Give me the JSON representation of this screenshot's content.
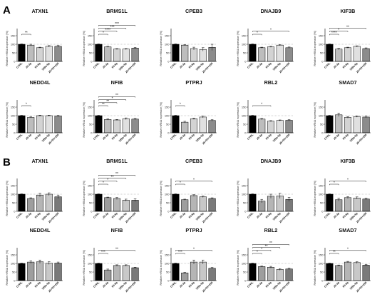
{
  "panels": [
    {
      "letter": "A"
    },
    {
      "letter": "B"
    }
  ],
  "chart_data": [
    {
      "panel": "A",
      "type": "bar",
      "title": "ATXN1",
      "ylabel": "Relative mRNA expression [%]",
      "ylim": [
        0,
        150
      ],
      "yticks": [
        0,
        50,
        100,
        150
      ],
      "categories": [
        "CTRL",
        "25-3p",
        "93-5p",
        "199a-5p",
        "25+93+199"
      ],
      "values": [
        100,
        95,
        80,
        88,
        88
      ],
      "errors": [
        2,
        5,
        3,
        4,
        5
      ],
      "significance": [
        {
          "to": 1,
          "label": "**"
        }
      ]
    },
    {
      "panel": "A",
      "type": "bar",
      "title": "BRMS1L",
      "ylabel": "Relative mRNA expression [%]",
      "ylim": [
        0,
        150
      ],
      "yticks": [
        0,
        50,
        100,
        150
      ],
      "categories": [
        "CTRL",
        "25-3p",
        "93-5p",
        "199a-5p",
        "25+93+199"
      ],
      "values": [
        100,
        85,
        72,
        72,
        78
      ],
      "errors": [
        2,
        3,
        3,
        3,
        4
      ],
      "significance": [
        {
          "to": 1,
          "label": "*"
        },
        {
          "to": 2,
          "label": "****"
        },
        {
          "to": 3,
          "label": "***"
        },
        {
          "to": 4,
          "label": "***"
        }
      ]
    },
    {
      "panel": "A",
      "type": "bar",
      "title": "CPEB3",
      "ylabel": "Relative mRNA expression [%]",
      "ylim": [
        0,
        150
      ],
      "yticks": [
        0,
        50,
        100,
        150
      ],
      "categories": [
        "CTRL",
        "25-3p",
        "93-5p",
        "199a-5p",
        "25+93+199"
      ],
      "values": [
        100,
        95,
        75,
        70,
        82
      ],
      "errors": [
        2,
        3,
        8,
        10,
        18
      ],
      "significance": []
    },
    {
      "panel": "A",
      "type": "bar",
      "title": "DNAJB9",
      "ylabel": "Relative mRNA expression [%]",
      "ylim": [
        0,
        150
      ],
      "yticks": [
        0,
        50,
        100,
        150
      ],
      "categories": [
        "CTRL",
        "25-3p",
        "93-5p",
        "199a-5p",
        "25+93+199"
      ],
      "values": [
        100,
        80,
        85,
        95,
        80
      ],
      "errors": [
        2,
        3,
        3,
        3,
        4
      ],
      "significance": [
        {
          "to": 1,
          "label": "*"
        },
        {
          "to": 4,
          "label": "*"
        }
      ]
    },
    {
      "panel": "A",
      "type": "bar",
      "title": "KIF3B",
      "ylabel": "Relative mRNA expression [%]",
      "ylim": [
        0,
        150
      ],
      "yticks": [
        0,
        50,
        100,
        150
      ],
      "categories": [
        "CTRL",
        "25-3p",
        "93-5p",
        "199a-5p",
        "25+93+199"
      ],
      "values": [
        100,
        72,
        80,
        88,
        75
      ],
      "errors": [
        2,
        4,
        3,
        3,
        4
      ],
      "significance": [
        {
          "to": 1,
          "label": "****"
        },
        {
          "to": 2,
          "label": "*"
        },
        {
          "to": 4,
          "label": "**"
        }
      ]
    },
    {
      "panel": "A",
      "type": "bar",
      "title": "NEDD4L",
      "ylabel": "Relative mRNA expression [%]",
      "ylim": [
        0,
        150
      ],
      "yticks": [
        0,
        50,
        100,
        150
      ],
      "categories": [
        "CTRL",
        "25-3p",
        "93-5p",
        "199a-5p",
        "25+93+199"
      ],
      "values": [
        100,
        90,
        100,
        100,
        98
      ],
      "errors": [
        2,
        3,
        3,
        3,
        3
      ],
      "significance": [
        {
          "to": 1,
          "label": "*"
        }
      ]
    },
    {
      "panel": "A",
      "type": "bar",
      "title": "NFIB",
      "ylabel": "Relative mRNA expression [%]",
      "ylim": [
        0,
        150
      ],
      "yticks": [
        0,
        50,
        100,
        150
      ],
      "categories": [
        "CTRL",
        "25-3p",
        "93-5p",
        "199a-5p",
        "25+93+199"
      ],
      "values": [
        100,
        78,
        75,
        82,
        80
      ],
      "errors": [
        2,
        4,
        3,
        5,
        4
      ],
      "significance": [
        {
          "to": 1,
          "label": "**"
        },
        {
          "to": 2,
          "label": "**"
        },
        {
          "to": 3,
          "label": "*"
        },
        {
          "to": 4,
          "label": "**"
        }
      ]
    },
    {
      "panel": "A",
      "type": "bar",
      "title": "PTPRJ",
      "ylabel": "Relative mRNA expression [%]",
      "ylim": [
        0,
        150
      ],
      "yticks": [
        0,
        50,
        100,
        150
      ],
      "categories": [
        "CTRL",
        "25-3p",
        "93-5p",
        "199a-5p",
        "25+93+199"
      ],
      "values": [
        100,
        62,
        82,
        92,
        72
      ],
      "errors": [
        2,
        5,
        4,
        5,
        5
      ],
      "significance": [
        {
          "to": 1,
          "label": "*"
        }
      ]
    },
    {
      "panel": "A",
      "type": "bar",
      "title": "RBL2",
      "ylabel": "Relative mRNA expression [%]",
      "ylim": [
        0,
        150
      ],
      "yticks": [
        0,
        50,
        100,
        150
      ],
      "categories": [
        "CTRL",
        "25-3p",
        "93-5p",
        "199a-5p",
        "25+93+199"
      ],
      "values": [
        100,
        80,
        68,
        72,
        73
      ],
      "errors": [
        2,
        4,
        3,
        3,
        4
      ],
      "significance": [
        {
          "to": 2,
          "label": "*"
        }
      ]
    },
    {
      "panel": "A",
      "type": "bar",
      "title": "SMAD7",
      "ylabel": "Relative mRNA expression [%]",
      "ylim": [
        0,
        150
      ],
      "yticks": [
        0,
        50,
        100,
        150
      ],
      "categories": [
        "CTRL",
        "25-3p",
        "93-5p",
        "199a-5p",
        "25+93+199"
      ],
      "values": [
        100,
        105,
        90,
        95,
        92
      ],
      "errors": [
        2,
        10,
        5,
        4,
        5
      ],
      "significance": []
    },
    {
      "panel": "B",
      "type": "bar",
      "title": "ATXN1",
      "ylabel": "Relative mRNA expression [%]",
      "ylim": [
        0,
        150
      ],
      "yticks": [
        0,
        50,
        100,
        150
      ],
      "categories": [
        "CTRL",
        "25-3p",
        "93-5p",
        "199a-5p",
        "25+93+199"
      ],
      "values": [
        100,
        75,
        95,
        100,
        85
      ],
      "errors": [
        2,
        4,
        10,
        8,
        10
      ],
      "significance": []
    },
    {
      "panel": "B",
      "type": "bar",
      "title": "BRMS1L",
      "ylabel": "Relative mRNA expression [%]",
      "ylim": [
        0,
        150
      ],
      "yticks": [
        0,
        50,
        100,
        150
      ],
      "categories": [
        "CTRL",
        "25-3p",
        "93-5p",
        "199a-5p",
        "25+93+199"
      ],
      "values": [
        100,
        80,
        75,
        65,
        65
      ],
      "errors": [
        2,
        3,
        6,
        6,
        8
      ],
      "significance": [
        {
          "to": 1,
          "label": "*"
        },
        {
          "to": 2,
          "label": "*"
        },
        {
          "to": 3,
          "label": "**"
        },
        {
          "to": 4,
          "label": "**"
        }
      ]
    },
    {
      "panel": "B",
      "type": "bar",
      "title": "CPEB3",
      "ylabel": "Relative mRNA expression [%]",
      "ylim": [
        0,
        150
      ],
      "yticks": [
        0,
        50,
        100,
        150
      ],
      "categories": [
        "CTRL",
        "25-3p",
        "93-5p",
        "199a-5p",
        "25+93+199"
      ],
      "values": [
        100,
        68,
        92,
        85,
        75
      ],
      "errors": [
        2,
        3,
        5,
        4,
        4
      ],
      "significance": [
        {
          "to": 1,
          "label": "*"
        },
        {
          "to": 4,
          "label": "*"
        }
      ]
    },
    {
      "panel": "B",
      "type": "bar",
      "title": "DNAJB9",
      "ylabel": "Relative mRNA expression [%]",
      "ylim": [
        0,
        150
      ],
      "yticks": [
        0,
        50,
        100,
        150
      ],
      "categories": [
        "CTRL",
        "25-3p",
        "93-5p",
        "199a-5p",
        "25+93+199"
      ],
      "values": [
        100,
        60,
        88,
        90,
        70
      ],
      "errors": [
        2,
        10,
        12,
        15,
        12
      ],
      "significance": []
    },
    {
      "panel": "B",
      "type": "bar",
      "title": "KIF3B",
      "ylabel": "Relative mRNA expression [%]",
      "ylim": [
        0,
        150
      ],
      "yticks": [
        0,
        50,
        100,
        150
      ],
      "categories": [
        "CTRL",
        "25-3p",
        "93-5p",
        "199a-5p",
        "25+93+199"
      ],
      "values": [
        100,
        68,
        80,
        78,
        72
      ],
      "errors": [
        2,
        8,
        6,
        6,
        5
      ],
      "significance": [
        {
          "to": 1,
          "label": "*"
        },
        {
          "to": 4,
          "label": "*"
        }
      ]
    },
    {
      "panel": "B",
      "type": "bar",
      "title": "NEDD4L",
      "ylabel": "Relative mRNA expression [%]",
      "ylim": [
        0,
        150
      ],
      "yticks": [
        0,
        50,
        100,
        150
      ],
      "categories": [
        "CTRL",
        "25-3p",
        "93-5p",
        "199a-5p",
        "25+93+199"
      ],
      "values": [
        100,
        108,
        110,
        102,
        102
      ],
      "errors": [
        2,
        8,
        10,
        8,
        6
      ],
      "significance": []
    },
    {
      "panel": "B",
      "type": "bar",
      "title": "NFIB",
      "ylabel": "Relative mRNA expression [%]",
      "ylim": [
        0,
        150
      ],
      "yticks": [
        0,
        50,
        100,
        150
      ],
      "categories": [
        "CTRL",
        "25-3p",
        "93-5p",
        "199a-5p",
        "25+93+199"
      ],
      "values": [
        100,
        62,
        88,
        88,
        75
      ],
      "errors": [
        2,
        5,
        4,
        4,
        3
      ],
      "significance": [
        {
          "to": 1,
          "label": "***"
        },
        {
          "to": 4,
          "label": "**"
        }
      ]
    },
    {
      "panel": "B",
      "type": "bar",
      "title": "PTPRJ",
      "ylabel": "Relative mRNA expression [%]",
      "ylim": [
        0,
        150
      ],
      "yticks": [
        0,
        50,
        100,
        150
      ],
      "categories": [
        "CTRL",
        "25-3p",
        "93-5p",
        "199a-5p",
        "25+93+199"
      ],
      "values": [
        100,
        45,
        108,
        108,
        72
      ],
      "errors": [
        2,
        3,
        12,
        12,
        5
      ],
      "significance": [
        {
          "to": 1,
          "label": "***"
        },
        {
          "to": 4,
          "label": "*"
        }
      ]
    },
    {
      "panel": "B",
      "type": "bar",
      "title": "RBL2",
      "ylabel": "Relative mRNA expression [%]",
      "ylim": [
        0,
        150
      ],
      "yticks": [
        0,
        50,
        100,
        150
      ],
      "categories": [
        "CTRL",
        "25-3p",
        "93-5p",
        "199a-5p",
        "25+93+199"
      ],
      "values": [
        100,
        82,
        78,
        65,
        68
      ],
      "errors": [
        2,
        3,
        5,
        5,
        5
      ],
      "significance": [
        {
          "to": 1,
          "label": "*"
        },
        {
          "to": 2,
          "label": "*"
        },
        {
          "to": 3,
          "label": "**"
        },
        {
          "to": 4,
          "label": "**"
        }
      ]
    },
    {
      "panel": "B",
      "type": "bar",
      "title": "SMAD7",
      "ylabel": "Relative mRNA expression [%]",
      "ylim": [
        0,
        150
      ],
      "yticks": [
        0,
        50,
        100,
        150
      ],
      "categories": [
        "CTRL",
        "25-3p",
        "93-5p",
        "199a-5p",
        "25+93+199"
      ],
      "values": [
        100,
        88,
        108,
        105,
        90
      ],
      "errors": [
        2,
        3,
        4,
        5,
        4
      ],
      "significance": [
        {
          "to": 1,
          "label": "**"
        },
        {
          "to": 4,
          "label": "*"
        }
      ]
    }
  ],
  "bar_colors": [
    "#000000",
    "#bdbdbd",
    "#d3d3d3",
    "#e0e0e0",
    "#8c8c8c"
  ],
  "bar_colors_b": [
    "#000000",
    "#9e9e9e",
    "#b5b5b5",
    "#c8c8c8",
    "#7a7a7a"
  ]
}
